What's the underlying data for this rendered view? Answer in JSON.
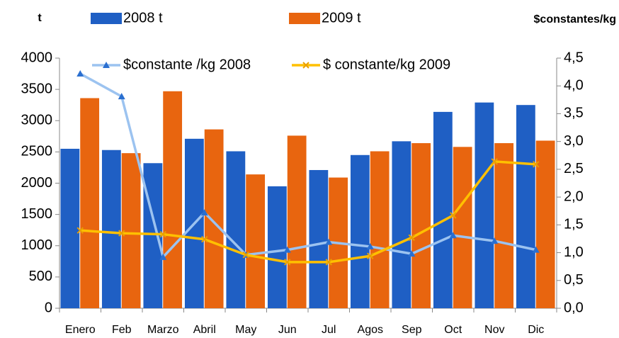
{
  "chart_data": {
    "type": "bar_line",
    "y_label": "t",
    "y2_label": "$constantes/kg",
    "categories": [
      "Enero",
      "Feb",
      "Marzo",
      "Abril",
      "May",
      "Jun",
      "Jul",
      "Agos",
      "Sep",
      "Oct",
      "Nov",
      "Dic"
    ],
    "series": [
      {
        "name": "2008 t",
        "type": "bar",
        "color": "#1f5fc4",
        "values": [
          2550,
          2530,
          2320,
          2710,
          2510,
          1950,
          2210,
          2450,
          2670,
          3140,
          3290,
          3250
        ]
      },
      {
        "name": "2009 t",
        "type": "bar",
        "color": "#e8650f",
        "values": [
          3360,
          2480,
          3470,
          2860,
          2140,
          2760,
          2090,
          2510,
          2640,
          2580,
          2640,
          2680
        ]
      },
      {
        "name": "$constante /kg 2008",
        "type": "line",
        "axis": "y2",
        "marker": "triangle",
        "color": "#9cc3f0",
        "values": [
          4.22,
          3.81,
          0.92,
          1.72,
          0.96,
          1.05,
          1.19,
          1.11,
          0.98,
          1.31,
          1.21,
          1.05
        ]
      },
      {
        "name": "$ constante/kg 2009",
        "type": "line",
        "axis": "y2",
        "marker": "x",
        "color": "#ffc000",
        "values": [
          1.4,
          1.35,
          1.33,
          1.24,
          0.96,
          0.83,
          0.83,
          0.94,
          1.27,
          1.67,
          2.64,
          2.59
        ]
      }
    ],
    "ylim": [
      0,
      4000
    ],
    "yticks": [
      0,
      500,
      1000,
      1500,
      2000,
      2500,
      3000,
      3500,
      4000
    ],
    "y2lim": [
      0,
      4.5
    ],
    "y2ticks": [
      {
        "value": 0,
        "label": "0,0"
      },
      {
        "value": 0.5,
        "label": "0,5"
      },
      {
        "value": 1,
        "label": "1,0"
      },
      {
        "value": 1.5,
        "label": "1,5"
      },
      {
        "value": 2,
        "label": "2,0"
      },
      {
        "value": 2.5,
        "label": "2,5"
      },
      {
        "value": 3,
        "label": "3,0"
      },
      {
        "value": 3.5,
        "label": "3,5"
      },
      {
        "value": 4,
        "label": "4,0"
      },
      {
        "value": 4.5,
        "label": "4,5"
      }
    ]
  }
}
